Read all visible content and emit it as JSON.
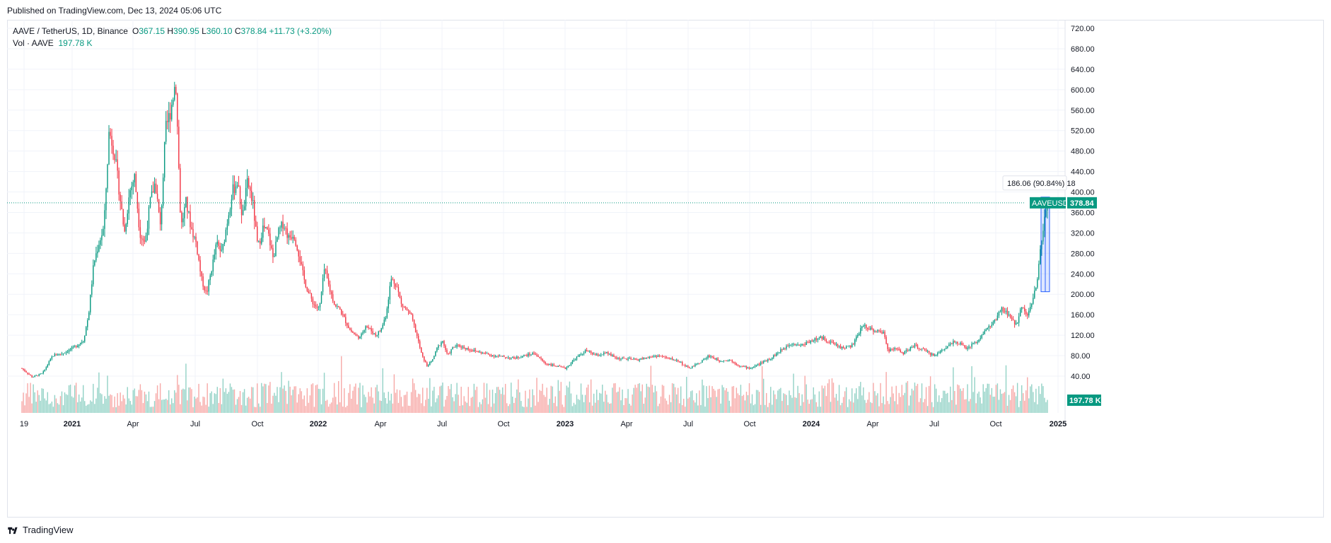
{
  "header": {
    "published": "Published on TradingView.com, Dec 13, 2024 05:06 UTC"
  },
  "legend": {
    "symbol": "AAVE / TetherUS, 1D, Binance",
    "open_label": "O",
    "open": "367.15",
    "high_label": "H",
    "high": "390.95",
    "low_label": "L",
    "low": "360.10",
    "close_label": "C",
    "close": "378.84",
    "change": "+11.73 (+3.20%)",
    "vol_label": "Vol · AAVE",
    "vol_value": "197.78 K"
  },
  "footer": {
    "brand": "TradingView"
  },
  "colors": {
    "up": "#089981",
    "down": "#f23645",
    "up_vol": "#93d2c6",
    "down_vol": "#f7a9a7",
    "grid": "#f0f3fa",
    "measure": "#2962ff"
  },
  "chart_data": {
    "type": "candlestick",
    "ylim": [
      0,
      740
    ],
    "y_ticks": [
      "720.00",
      "680.00",
      "640.00",
      "600.00",
      "560.00",
      "520.00",
      "480.00",
      "440.00",
      "400.00",
      "360.00",
      "320.00",
      "280.00",
      "240.00",
      "200.00",
      "160.00",
      "120.00",
      "80.00",
      "40.00"
    ],
    "x_ticks": [
      "19",
      "2021",
      "Apr",
      "Jul",
      "Oct",
      "2022",
      "Apr",
      "Jul",
      "Oct",
      "2023",
      "Apr",
      "Jul",
      "Oct",
      "2024",
      "Apr",
      "Jul",
      "Oct",
      "2025"
    ],
    "price_label": {
      "symbol": "AAVEUSDT",
      "value": "378.84"
    },
    "volume_label": "197.78 K",
    "measure_label": "186.06 (90.84%) 18",
    "price_path": [
      [
        0,
        55
      ],
      [
        0.01,
        38
      ],
      [
        0.02,
        45
      ],
      [
        0.03,
        80
      ],
      [
        0.04,
        85
      ],
      [
        0.05,
        95
      ],
      [
        0.06,
        110
      ],
      [
        0.065,
        160
      ],
      [
        0.07,
        260
      ],
      [
        0.075,
        300
      ],
      [
        0.08,
        330
      ],
      [
        0.085,
        520
      ],
      [
        0.09,
        480
      ],
      [
        0.095,
        400
      ],
      [
        0.1,
        320
      ],
      [
        0.105,
        400
      ],
      [
        0.11,
        430
      ],
      [
        0.115,
        320
      ],
      [
        0.12,
        300
      ],
      [
        0.125,
        380
      ],
      [
        0.13,
        420
      ],
      [
        0.135,
        330
      ],
      [
        0.14,
        520
      ],
      [
        0.145,
        560
      ],
      [
        0.15,
        620
      ],
      [
        0.155,
        330
      ],
      [
        0.16,
        380
      ],
      [
        0.165,
        330
      ],
      [
        0.17,
        300
      ],
      [
        0.175,
        230
      ],
      [
        0.18,
        200
      ],
      [
        0.185,
        250
      ],
      [
        0.19,
        300
      ],
      [
        0.195,
        280
      ],
      [
        0.2,
        340
      ],
      [
        0.205,
        400
      ],
      [
        0.21,
        420
      ],
      [
        0.215,
        350
      ],
      [
        0.22,
        420
      ],
      [
        0.225,
        380
      ],
      [
        0.23,
        290
      ],
      [
        0.235,
        330
      ],
      [
        0.24,
        320
      ],
      [
        0.245,
        270
      ],
      [
        0.25,
        320
      ],
      [
        0.255,
        340
      ],
      [
        0.26,
        310
      ],
      [
        0.265,
        320
      ],
      [
        0.27,
        280
      ],
      [
        0.275,
        230
      ],
      [
        0.28,
        200
      ],
      [
        0.285,
        180
      ],
      [
        0.29,
        170
      ],
      [
        0.295,
        250
      ],
      [
        0.3,
        210
      ],
      [
        0.305,
        180
      ],
      [
        0.31,
        170
      ],
      [
        0.315,
        150
      ],
      [
        0.32,
        130
      ],
      [
        0.325,
        120
      ],
      [
        0.33,
        115
      ],
      [
        0.335,
        140
      ],
      [
        0.34,
        130
      ],
      [
        0.345,
        120
      ],
      [
        0.35,
        130
      ],
      [
        0.355,
        160
      ],
      [
        0.36,
        230
      ],
      [
        0.365,
        220
      ],
      [
        0.37,
        180
      ],
      [
        0.375,
        170
      ],
      [
        0.38,
        155
      ],
      [
        0.385,
        120
      ],
      [
        0.39,
        80
      ],
      [
        0.395,
        60
      ],
      [
        0.4,
        70
      ],
      [
        0.405,
        95
      ],
      [
        0.41,
        110
      ],
      [
        0.415,
        80
      ],
      [
        0.42,
        95
      ],
      [
        0.425,
        100
      ],
      [
        0.44,
        90
      ],
      [
        0.46,
        80
      ],
      [
        0.48,
        75
      ],
      [
        0.5,
        85
      ],
      [
        0.51,
        65
      ],
      [
        0.52,
        60
      ],
      [
        0.53,
        55
      ],
      [
        0.54,
        75
      ],
      [
        0.55,
        90
      ],
      [
        0.56,
        80
      ],
      [
        0.57,
        85
      ],
      [
        0.58,
        75
      ],
      [
        0.6,
        72
      ],
      [
        0.62,
        80
      ],
      [
        0.64,
        70
      ],
      [
        0.65,
        55
      ],
      [
        0.66,
        65
      ],
      [
        0.67,
        80
      ],
      [
        0.68,
        70
      ],
      [
        0.69,
        72
      ],
      [
        0.7,
        60
      ],
      [
        0.71,
        55
      ],
      [
        0.72,
        65
      ],
      [
        0.73,
        75
      ],
      [
        0.74,
        90
      ],
      [
        0.75,
        105
      ],
      [
        0.76,
        100
      ],
      [
        0.77,
        110
      ],
      [
        0.78,
        115
      ],
      [
        0.79,
        105
      ],
      [
        0.8,
        95
      ],
      [
        0.81,
        100
      ],
      [
        0.82,
        140
      ],
      [
        0.83,
        130
      ],
      [
        0.84,
        125
      ],
      [
        0.845,
        90
      ],
      [
        0.85,
        95
      ],
      [
        0.86,
        85
      ],
      [
        0.87,
        100
      ],
      [
        0.88,
        90
      ],
      [
        0.89,
        80
      ],
      [
        0.9,
        95
      ],
      [
        0.91,
        110
      ],
      [
        0.92,
        95
      ],
      [
        0.93,
        105
      ],
      [
        0.94,
        130
      ],
      [
        0.95,
        150
      ],
      [
        0.955,
        170
      ],
      [
        0.96,
        165
      ],
      [
        0.965,
        150
      ],
      [
        0.97,
        140
      ],
      [
        0.975,
        180
      ],
      [
        0.98,
        160
      ],
      [
        0.983,
        170
      ],
      [
        0.986,
        195
      ],
      [
        0.99,
        220
      ],
      [
        0.993,
        290
      ],
      [
        0.996,
        330
      ],
      [
        1,
        378.84
      ]
    ]
  }
}
